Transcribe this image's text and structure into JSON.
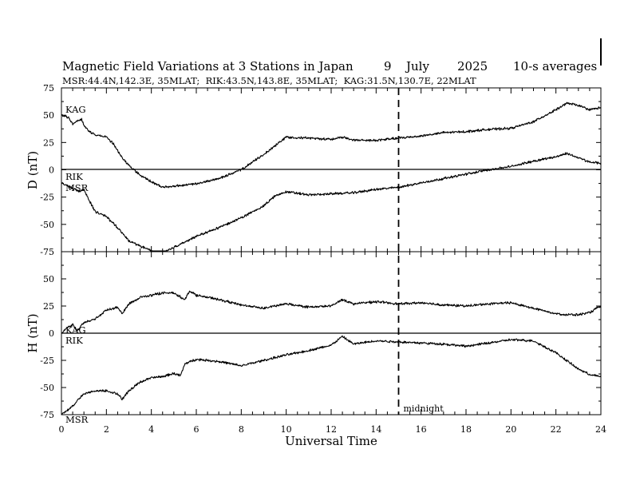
{
  "chart_data": {
    "type": "line",
    "title": "Magnetic Field Variations at 3 Stations in Japan",
    "date": {
      "day": "9",
      "month": "July",
      "year": "2025"
    },
    "averaging": "10-s averages",
    "subtitle": "MSR:44.4N,142.3E, 35MLAT;  RIK:43.5N,143.8E, 35MLAT;  KAG:31.5N,130.7E, 22MLAT",
    "xlabel": "Universal Time",
    "xlim": [
      0,
      24
    ],
    "x_ticks": [
      "0",
      "2",
      "4",
      "6",
      "8",
      "10",
      "12",
      "14",
      "16",
      "18",
      "20",
      "22",
      "24"
    ],
    "midnight_marker": {
      "x": 15,
      "label": "midnight"
    },
    "panels": [
      {
        "name": "D",
        "ylabel": "D (nT)",
        "ylim": [
          -75,
          75
        ],
        "y_ticks": [
          "75",
          "50",
          "25",
          "0",
          "-25",
          "-50",
          "-75"
        ],
        "series_labels": [
          "KAG",
          "RIK",
          "MSR"
        ],
        "series": [
          {
            "name": "KAG",
            "x": [
              0,
              0.3,
              0.5,
              0.7,
              0.9,
              1.0,
              1.2,
              1.5,
              2.0,
              2.3,
              2.6,
              3.0,
              3.5,
              4.0,
              4.5,
              5.0,
              6.0,
              7.0,
              8.0,
              9.0,
              10.0,
              11.0,
              12.0,
              12.5,
              13.0,
              14.0,
              15.0,
              16.0,
              17.0,
              18.0,
              19.0,
              20.0,
              21.0,
              22.0,
              22.5,
              23.0,
              23.5,
              24.0
            ],
            "values": [
              50,
              48,
              42,
              45,
              46,
              41,
              36,
              32,
              30,
              24,
              14,
              4,
              -5,
              -11,
              -16,
              -15,
              -13,
              -8,
              0,
              14,
              30,
              29,
              28,
              30,
              27,
              27,
              29,
              31,
              34,
              35,
              37,
              38,
              44,
              55,
              61,
              59,
              55,
              57
            ]
          },
          {
            "name": "MSR/RIK",
            "x": [
              0,
              0.2,
              0.5,
              0.8,
              1.0,
              1.2,
              1.5,
              2.0,
              2.5,
              3.0,
              3.5,
              4.0,
              4.4,
              4.7,
              5.0,
              6.0,
              7.0,
              8.0,
              9.0,
              9.5,
              10.0,
              11.0,
              12.0,
              13.0,
              14.0,
              15.0,
              16.0,
              17.0,
              18.0,
              19.0,
              20.0,
              21.0,
              22.0,
              22.5,
              23.0,
              23.5,
              24.0
            ],
            "values": [
              -12,
              -14,
              -17,
              -20,
              -18,
              -27,
              -38,
              -43,
              -53,
              -65,
              -70,
              -74,
              -77,
              -74,
              -71,
              -61,
              -53,
              -44,
              -33,
              -24,
              -20,
              -23,
              -22,
              -21,
              -18,
              -16,
              -12,
              -8,
              -4,
              0,
              3,
              8,
              12,
              15,
              11,
              7,
              6
            ]
          }
        ]
      },
      {
        "name": "H",
        "ylabel": "H (nT)",
        "ylim": [
          -75,
          75
        ],
        "y_ticks": [
          "50",
          "25",
          "0",
          "-25",
          "-50",
          "-75"
        ],
        "series_labels": [
          "KAG",
          "RIK",
          "MSR"
        ],
        "series": [
          {
            "name": "KAG",
            "x": [
              0,
              0.2,
              0.5,
              0.7,
              1.0,
              1.5,
              2.0,
              2.5,
              2.7,
              3.0,
              3.5,
              4.0,
              4.5,
              5.0,
              5.5,
              5.7,
              6.0,
              7.0,
              8.0,
              9.0,
              10.0,
              11.0,
              12.0,
              12.5,
              13.0,
              14.0,
              15.0,
              16.0,
              17.0,
              18.0,
              19.0,
              20.0,
              21.0,
              22.0,
              22.5,
              23.0,
              23.5,
              24.0
            ],
            "values": [
              0,
              4,
              8,
              2,
              10,
              13,
              21,
              24,
              18,
              27,
              33,
              35,
              37,
              37,
              31,
              39,
              35,
              31,
              26,
              23,
              27,
              24,
              25,
              31,
              27,
              29,
              27,
              28,
              26,
              25,
              27,
              28,
              23,
              18,
              17,
              17,
              19,
              25
            ]
          },
          {
            "name": "MSR/RIK",
            "x": [
              0,
              0.2,
              0.5,
              0.8,
              1.0,
              1.5,
              2.0,
              2.5,
              2.7,
              3.0,
              3.5,
              4.0,
              4.5,
              5.0,
              5.3,
              5.5,
              6.0,
              7.0,
              8.0,
              9.0,
              10.0,
              11.0,
              12.0,
              12.5,
              13.0,
              14.0,
              15.0,
              16.0,
              17.0,
              18.0,
              19.0,
              20.0,
              21.0,
              22.0,
              23.0,
              23.5,
              24.0
            ],
            "values": [
              -75,
              -72,
              -67,
              -60,
              -56,
              -53,
              -53,
              -56,
              -61,
              -53,
              -45,
              -41,
              -40,
              -37,
              -39,
              -28,
              -24,
              -26,
              -30,
              -25,
              -20,
              -16,
              -11,
              -3,
              -10,
              -7,
              -8,
              -9,
              -10,
              -12,
              -9,
              -6,
              -7,
              -18,
              -33,
              -38,
              -40
            ]
          }
        ]
      }
    ]
  }
}
